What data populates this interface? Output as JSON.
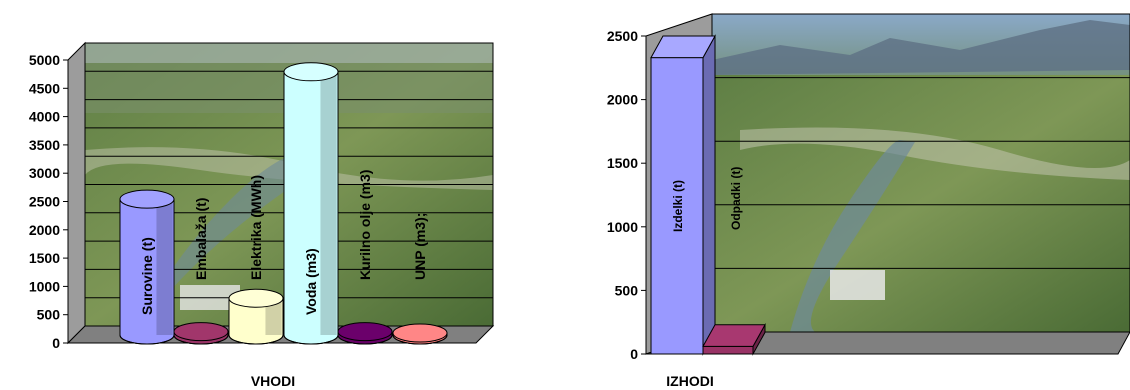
{
  "chart_data": [
    {
      "type": "bar",
      "style": "3d-cylinder",
      "xlabel": "VHODI",
      "ylim": [
        0,
        5000
      ],
      "yticks": [
        0,
        500,
        1000,
        1500,
        2000,
        2500,
        3000,
        3500,
        4000,
        4500,
        5000
      ],
      "grid": true,
      "background": "aerial landscape photo",
      "categories": [
        "Surovine (t)",
        "Embalaža (t)",
        "Elektrika (MWh)",
        "Voda (m3)",
        "Kurilno olje (m3)",
        "UNP (m3);"
      ],
      "values": [
        2400,
        60,
        650,
        4650,
        60,
        20
      ],
      "colors": [
        "#9999ff",
        "#993366",
        "#ffffcc",
        "#ccffff",
        "#660066",
        "#ff8080"
      ]
    },
    {
      "type": "bar",
      "style": "3d-block",
      "xlabel": "IZHODI",
      "ylim": [
        0,
        2500
      ],
      "yticks": [
        0,
        500,
        1000,
        1500,
        2000,
        2500
      ],
      "grid": true,
      "background": "aerial landscape photo",
      "categories": [
        "Izdelki (t)",
        "Odpadki (t)"
      ],
      "values": [
        2330,
        60
      ],
      "colors": [
        "#9999ff",
        "#993366"
      ]
    }
  ]
}
